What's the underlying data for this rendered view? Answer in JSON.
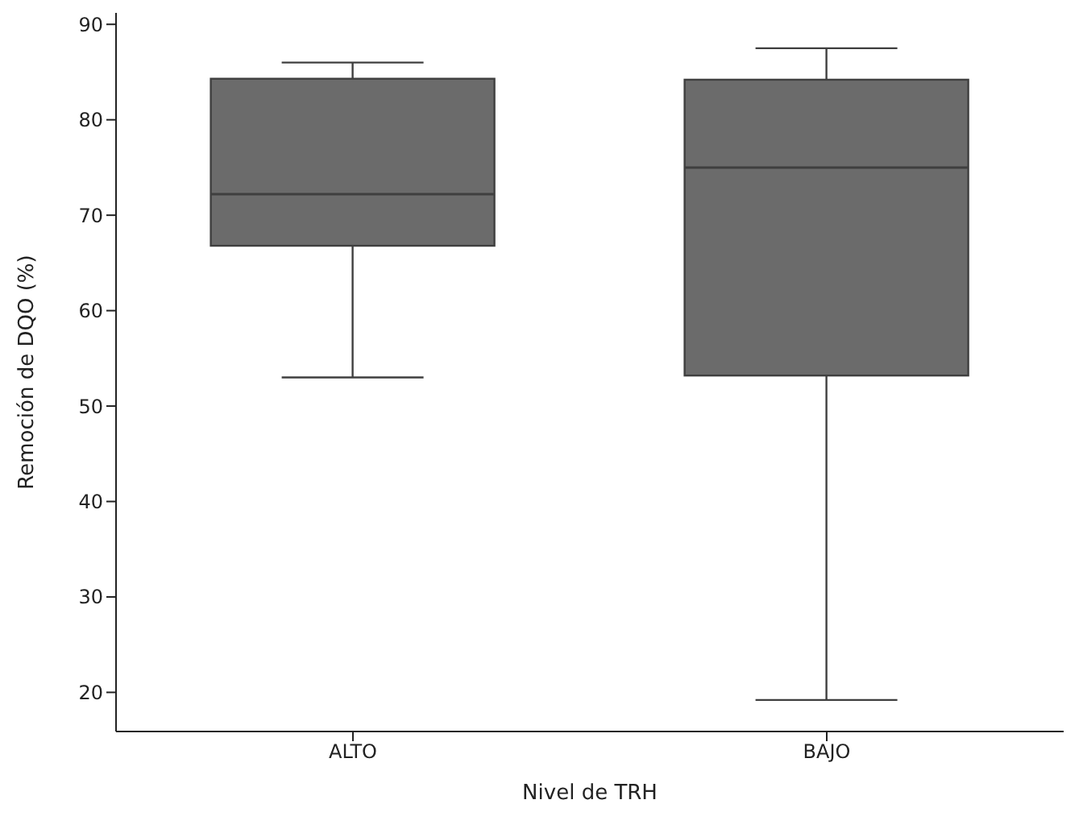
{
  "chart_data": {
    "type": "box",
    "xlabel": "Nivel de TRH",
    "ylabel": "Remoción de DQO (%)",
    "categories": [
      "ALTO",
      "BAJO"
    ],
    "color": "#6b6b6b",
    "boxes": [
      {
        "low": 53,
        "q1": 66.8,
        "median": 72.2,
        "q3": 84.3,
        "high": 86
      },
      {
        "low": 19.2,
        "q1": 53.2,
        "median": 75,
        "q3": 84.2,
        "high": 87.5
      }
    ],
    "ylim": [
      15.9,
      91.2
    ],
    "yticks": [
      20,
      30,
      40,
      50,
      60,
      70,
      80,
      90
    ],
    "grid": false
  }
}
